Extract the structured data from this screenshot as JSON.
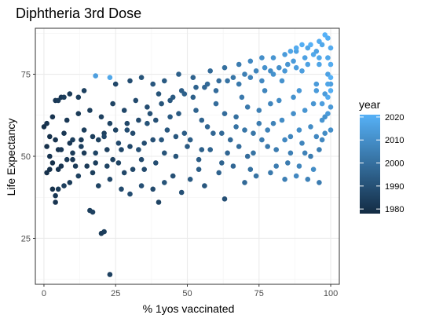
{
  "chart_data": {
    "type": "scatter",
    "title": "Diphtheria 3rd Dose",
    "xlabel": "% 1yos vaccinated",
    "ylabel": "Life Expectancy",
    "xlim": [
      -3,
      103
    ],
    "ylim": [
      11,
      89
    ],
    "x_ticks": [
      0,
      25,
      50,
      75,
      100
    ],
    "y_ticks": [
      25,
      50,
      75
    ],
    "grid": true,
    "legend": {
      "title": "year",
      "position": "right",
      "ticks": [
        2020,
        2010,
        2000,
        1990,
        1980
      ],
      "range": [
        1978,
        2021
      ],
      "color_low": "#132B43",
      "color_high": "#56B1F7"
    },
    "points": [
      [
        23,
        14,
        1985
      ],
      [
        20,
        26.5,
        1983
      ],
      [
        21,
        27,
        1984
      ],
      [
        16,
        33.5,
        1984
      ],
      [
        17,
        33,
        1985
      ],
      [
        40,
        36,
        1986
      ],
      [
        63,
        37,
        1990
      ],
      [
        4,
        36,
        1981
      ],
      [
        4,
        38,
        1982
      ],
      [
        3,
        40,
        1980
      ],
      [
        5,
        40,
        1983
      ],
      [
        7,
        41,
        1984
      ],
      [
        9,
        42,
        1983
      ],
      [
        12,
        44,
        1985
      ],
      [
        19,
        41,
        1986
      ],
      [
        23,
        43,
        1987
      ],
      [
        27,
        40,
        1988
      ],
      [
        30,
        38.5,
        1989
      ],
      [
        34,
        41,
        1990
      ],
      [
        38,
        40,
        1988
      ],
      [
        42,
        42,
        1991
      ],
      [
        48,
        39,
        1990
      ],
      [
        51,
        43,
        1993
      ],
      [
        56,
        41,
        1992
      ],
      [
        61,
        45,
        1996
      ],
      [
        70,
        42,
        1998
      ],
      [
        74,
        44,
        2001
      ],
      [
        79,
        45,
        2003
      ],
      [
        84,
        43,
        2005
      ],
      [
        88,
        44,
        2008
      ],
      [
        92,
        43,
        2006
      ],
      [
        96,
        42,
        2004
      ],
      [
        0,
        59,
        1980
      ],
      [
        1,
        60,
        1981
      ],
      [
        2,
        56,
        1980
      ],
      [
        4,
        67,
        1982
      ],
      [
        5,
        67,
        1983
      ],
      [
        6,
        68,
        1982
      ],
      [
        7,
        68,
        1984
      ],
      [
        9,
        69,
        1983
      ],
      [
        12,
        68,
        1984
      ],
      [
        14,
        70,
        1985
      ],
      [
        18,
        74.5,
        2015
      ],
      [
        23,
        74,
        2018
      ],
      [
        25,
        72,
        1987
      ],
      [
        30,
        73,
        1989
      ],
      [
        34,
        74,
        1991
      ],
      [
        38,
        72,
        1992
      ],
      [
        42,
        73,
        1993
      ],
      [
        47,
        75,
        1995
      ],
      [
        52,
        74,
        1996
      ],
      [
        58,
        76,
        1998
      ],
      [
        63,
        77,
        2000
      ],
      [
        68,
        78,
        2004
      ],
      [
        72,
        79,
        2008
      ],
      [
        76,
        80,
        2010
      ],
      [
        80,
        80,
        2012
      ],
      [
        84,
        81,
        2014
      ],
      [
        88,
        82,
        2016
      ],
      [
        92,
        83,
        2017
      ],
      [
        96,
        85,
        2019
      ],
      [
        98,
        87,
        2021
      ],
      [
        99,
        86,
        2020
      ],
      [
        97,
        84,
        2018
      ],
      [
        95,
        82,
        2016
      ],
      [
        100,
        83,
        2019
      ],
      [
        2,
        50,
        1981
      ],
      [
        3,
        48,
        1980
      ],
      [
        6,
        52,
        1982
      ],
      [
        8,
        49,
        1983
      ],
      [
        10,
        55,
        1984
      ],
      [
        13,
        53,
        1985
      ],
      [
        15,
        47,
        1983
      ],
      [
        18,
        51,
        1986
      ],
      [
        21,
        56,
        1987
      ],
      [
        24,
        49,
        1985
      ],
      [
        26,
        54,
        1988
      ],
      [
        29,
        58,
        1989
      ],
      [
        31,
        46,
        1987
      ],
      [
        33,
        52,
        1990
      ],
      [
        36,
        60,
        1991
      ],
      [
        39,
        48,
        1989
      ],
      [
        41,
        55,
        1992
      ],
      [
        44,
        62,
        1993
      ],
      [
        46,
        50,
        1991
      ],
      [
        49,
        57,
        1994
      ],
      [
        53,
        64,
        1996
      ],
      [
        55,
        52,
        1995
      ],
      [
        57,
        59,
        1997
      ],
      [
        60,
        66,
        1999
      ],
      [
        62,
        48,
        1996
      ],
      [
        65,
        55,
        1998
      ],
      [
        67,
        62,
        2000
      ],
      [
        69,
        68,
        2003
      ],
      [
        71,
        50,
        1999
      ],
      [
        73,
        57,
        2002
      ],
      [
        75,
        64,
        2005
      ],
      [
        77,
        70,
        2007
      ],
      [
        78,
        53,
        2003
      ],
      [
        80,
        60,
        2006
      ],
      [
        82,
        67,
        2009
      ],
      [
        83,
        73,
        2011
      ],
      [
        85,
        48,
        2004
      ],
      [
        86,
        56,
        2007
      ],
      [
        87,
        63,
        2010
      ],
      [
        89,
        70,
        2013
      ],
      [
        90,
        76,
        2015
      ],
      [
        91,
        51,
        2006
      ],
      [
        93,
        59,
        2009
      ],
      [
        94,
        66,
        2012
      ],
      [
        95,
        72,
        2014
      ],
      [
        96,
        78,
        2017
      ],
      [
        97,
        55,
        2008
      ],
      [
        98,
        62,
        2011
      ],
      [
        98,
        69,
        2014
      ],
      [
        99,
        75,
        2016
      ],
      [
        99,
        80,
        2018
      ],
      [
        100,
        58,
        2010
      ],
      [
        100,
        65,
        2013
      ],
      [
        100,
        72,
        2015
      ],
      [
        100,
        78,
        2019
      ],
      [
        1,
        45,
        1980
      ],
      [
        5,
        46,
        1981
      ],
      [
        11,
        47,
        1983
      ],
      [
        17,
        45,
        1984
      ],
      [
        22,
        47,
        1986
      ],
      [
        28,
        45,
        1987
      ],
      [
        35,
        46,
        1988
      ],
      [
        45,
        44,
        1990
      ],
      [
        54,
        46,
        1994
      ],
      [
        66,
        47,
        1997
      ],
      [
        72,
        46,
        2000
      ],
      [
        81,
        47,
        2004
      ],
      [
        89,
        47,
        2007
      ],
      [
        94,
        46,
        2009
      ],
      [
        3,
        62,
        1981
      ],
      [
        8,
        61,
        1982
      ],
      [
        12,
        63,
        1983
      ],
      [
        16,
        64,
        1984
      ],
      [
        20,
        62,
        1985
      ],
      [
        24,
        66,
        1986
      ],
      [
        28,
        64,
        1987
      ],
      [
        32,
        67,
        1988
      ],
      [
        36,
        65,
        1989
      ],
      [
        40,
        69,
        1991
      ],
      [
        44,
        67,
        1992
      ],
      [
        48,
        70,
        1994
      ],
      [
        52,
        68,
        1995
      ],
      [
        56,
        71,
        1997
      ],
      [
        60,
        70,
        1999
      ],
      [
        64,
        73,
        2001
      ],
      [
        68,
        72,
        2003
      ],
      [
        72,
        74,
        2006
      ],
      [
        76,
        73,
        2008
      ],
      [
        80,
        75,
        2011
      ],
      [
        84,
        76,
        2013
      ],
      [
        88,
        77,
        2015
      ],
      [
        92,
        78,
        2016
      ],
      [
        96,
        80,
        2018
      ],
      [
        1,
        53,
        1980
      ],
      [
        4,
        55,
        1981
      ],
      [
        7,
        57,
        1982
      ],
      [
        10,
        51,
        1983
      ],
      [
        14,
        58,
        1984
      ],
      [
        19,
        55,
        1985
      ],
      [
        23,
        60,
        1986
      ],
      [
        27,
        52,
        1987
      ],
      [
        31,
        57,
        1988
      ],
      [
        35,
        54,
        1989
      ],
      [
        39,
        61,
        1990
      ],
      [
        43,
        58,
        1992
      ],
      [
        47,
        63,
        1993
      ],
      [
        51,
        55,
        1994
      ],
      [
        55,
        61,
        1996
      ],
      [
        59,
        57,
        1997
      ],
      [
        63,
        63,
        1999
      ],
      [
        67,
        59,
        2001
      ],
      [
        71,
        65,
        2003
      ],
      [
        75,
        60,
        2004
      ],
      [
        79,
        66,
        2007
      ],
      [
        83,
        61,
        2009
      ],
      [
        87,
        68,
        2011
      ],
      [
        91,
        64,
        2012
      ],
      [
        95,
        70,
        2014
      ],
      [
        97,
        66,
        2015
      ],
      [
        99,
        72,
        2017
      ],
      [
        100,
        70,
        2020
      ],
      [
        100,
        74,
        2021
      ],
      [
        99,
        68,
        2019
      ],
      [
        86,
        82,
        2017
      ],
      [
        88,
        83,
        2019
      ],
      [
        90,
        84,
        2020
      ],
      [
        93,
        84,
        2021
      ],
      [
        94,
        81,
        2018
      ],
      [
        91,
        80,
        2016
      ],
      [
        87,
        79,
        2014
      ],
      [
        85,
        78,
        2012
      ],
      [
        82,
        77,
        2010
      ],
      [
        79,
        76,
        2009
      ],
      [
        77,
        77,
        2011
      ],
      [
        74,
        76,
        2007
      ],
      [
        70,
        75,
        2005
      ],
      [
        66,
        74,
        2002
      ],
      [
        61,
        73,
        1999
      ],
      [
        57,
        72,
        1998
      ],
      [
        53,
        71,
        1996
      ],
      [
        49,
        69,
        1995
      ],
      [
        45,
        68,
        1993
      ],
      [
        41,
        66,
        1991
      ],
      [
        37,
        63,
        1990
      ],
      [
        33,
        61,
        1988
      ],
      [
        29,
        60,
        1987
      ],
      [
        25,
        58,
        1986
      ],
      [
        21,
        57,
        1985
      ],
      [
        17,
        56,
        1984
      ],
      [
        13,
        55,
        1983
      ],
      [
        9,
        54,
        1982
      ],
      [
        5,
        52,
        1981
      ],
      [
        96,
        52,
        2005
      ],
      [
        98,
        57,
        2009
      ],
      [
        97,
        61,
        2012
      ],
      [
        99,
        63,
        2014
      ],
      [
        95,
        56,
        2008
      ],
      [
        93,
        50,
        2004
      ],
      [
        90,
        54,
        2007
      ],
      [
        89,
        58,
        2010
      ],
      [
        86,
        51,
        2005
      ],
      [
        84,
        55,
        2008
      ],
      [
        81,
        52,
        2004
      ],
      [
        78,
        58,
        2006
      ],
      [
        76,
        55,
        2004
      ],
      [
        73,
        51,
        2001
      ],
      [
        70,
        58,
        2002
      ],
      [
        68,
        53,
        1999
      ],
      [
        64,
        51,
        1997
      ],
      [
        62,
        57,
        1998
      ],
      [
        58,
        52,
        1996
      ],
      [
        54,
        49,
        1994
      ],
      [
        50,
        53,
        1993
      ],
      [
        46,
        56,
        1992
      ],
      [
        42,
        51,
        1991
      ],
      [
        38,
        55,
        1990
      ],
      [
        34,
        49,
        1988
      ],
      [
        30,
        53,
        1987
      ],
      [
        26,
        48,
        1986
      ],
      [
        22,
        52,
        1985
      ],
      [
        18,
        48,
        1984
      ],
      [
        14,
        51,
        1983
      ],
      [
        10,
        49,
        1982
      ],
      [
        6,
        47,
        1981
      ],
      [
        2,
        46,
        1980
      ]
    ]
  }
}
